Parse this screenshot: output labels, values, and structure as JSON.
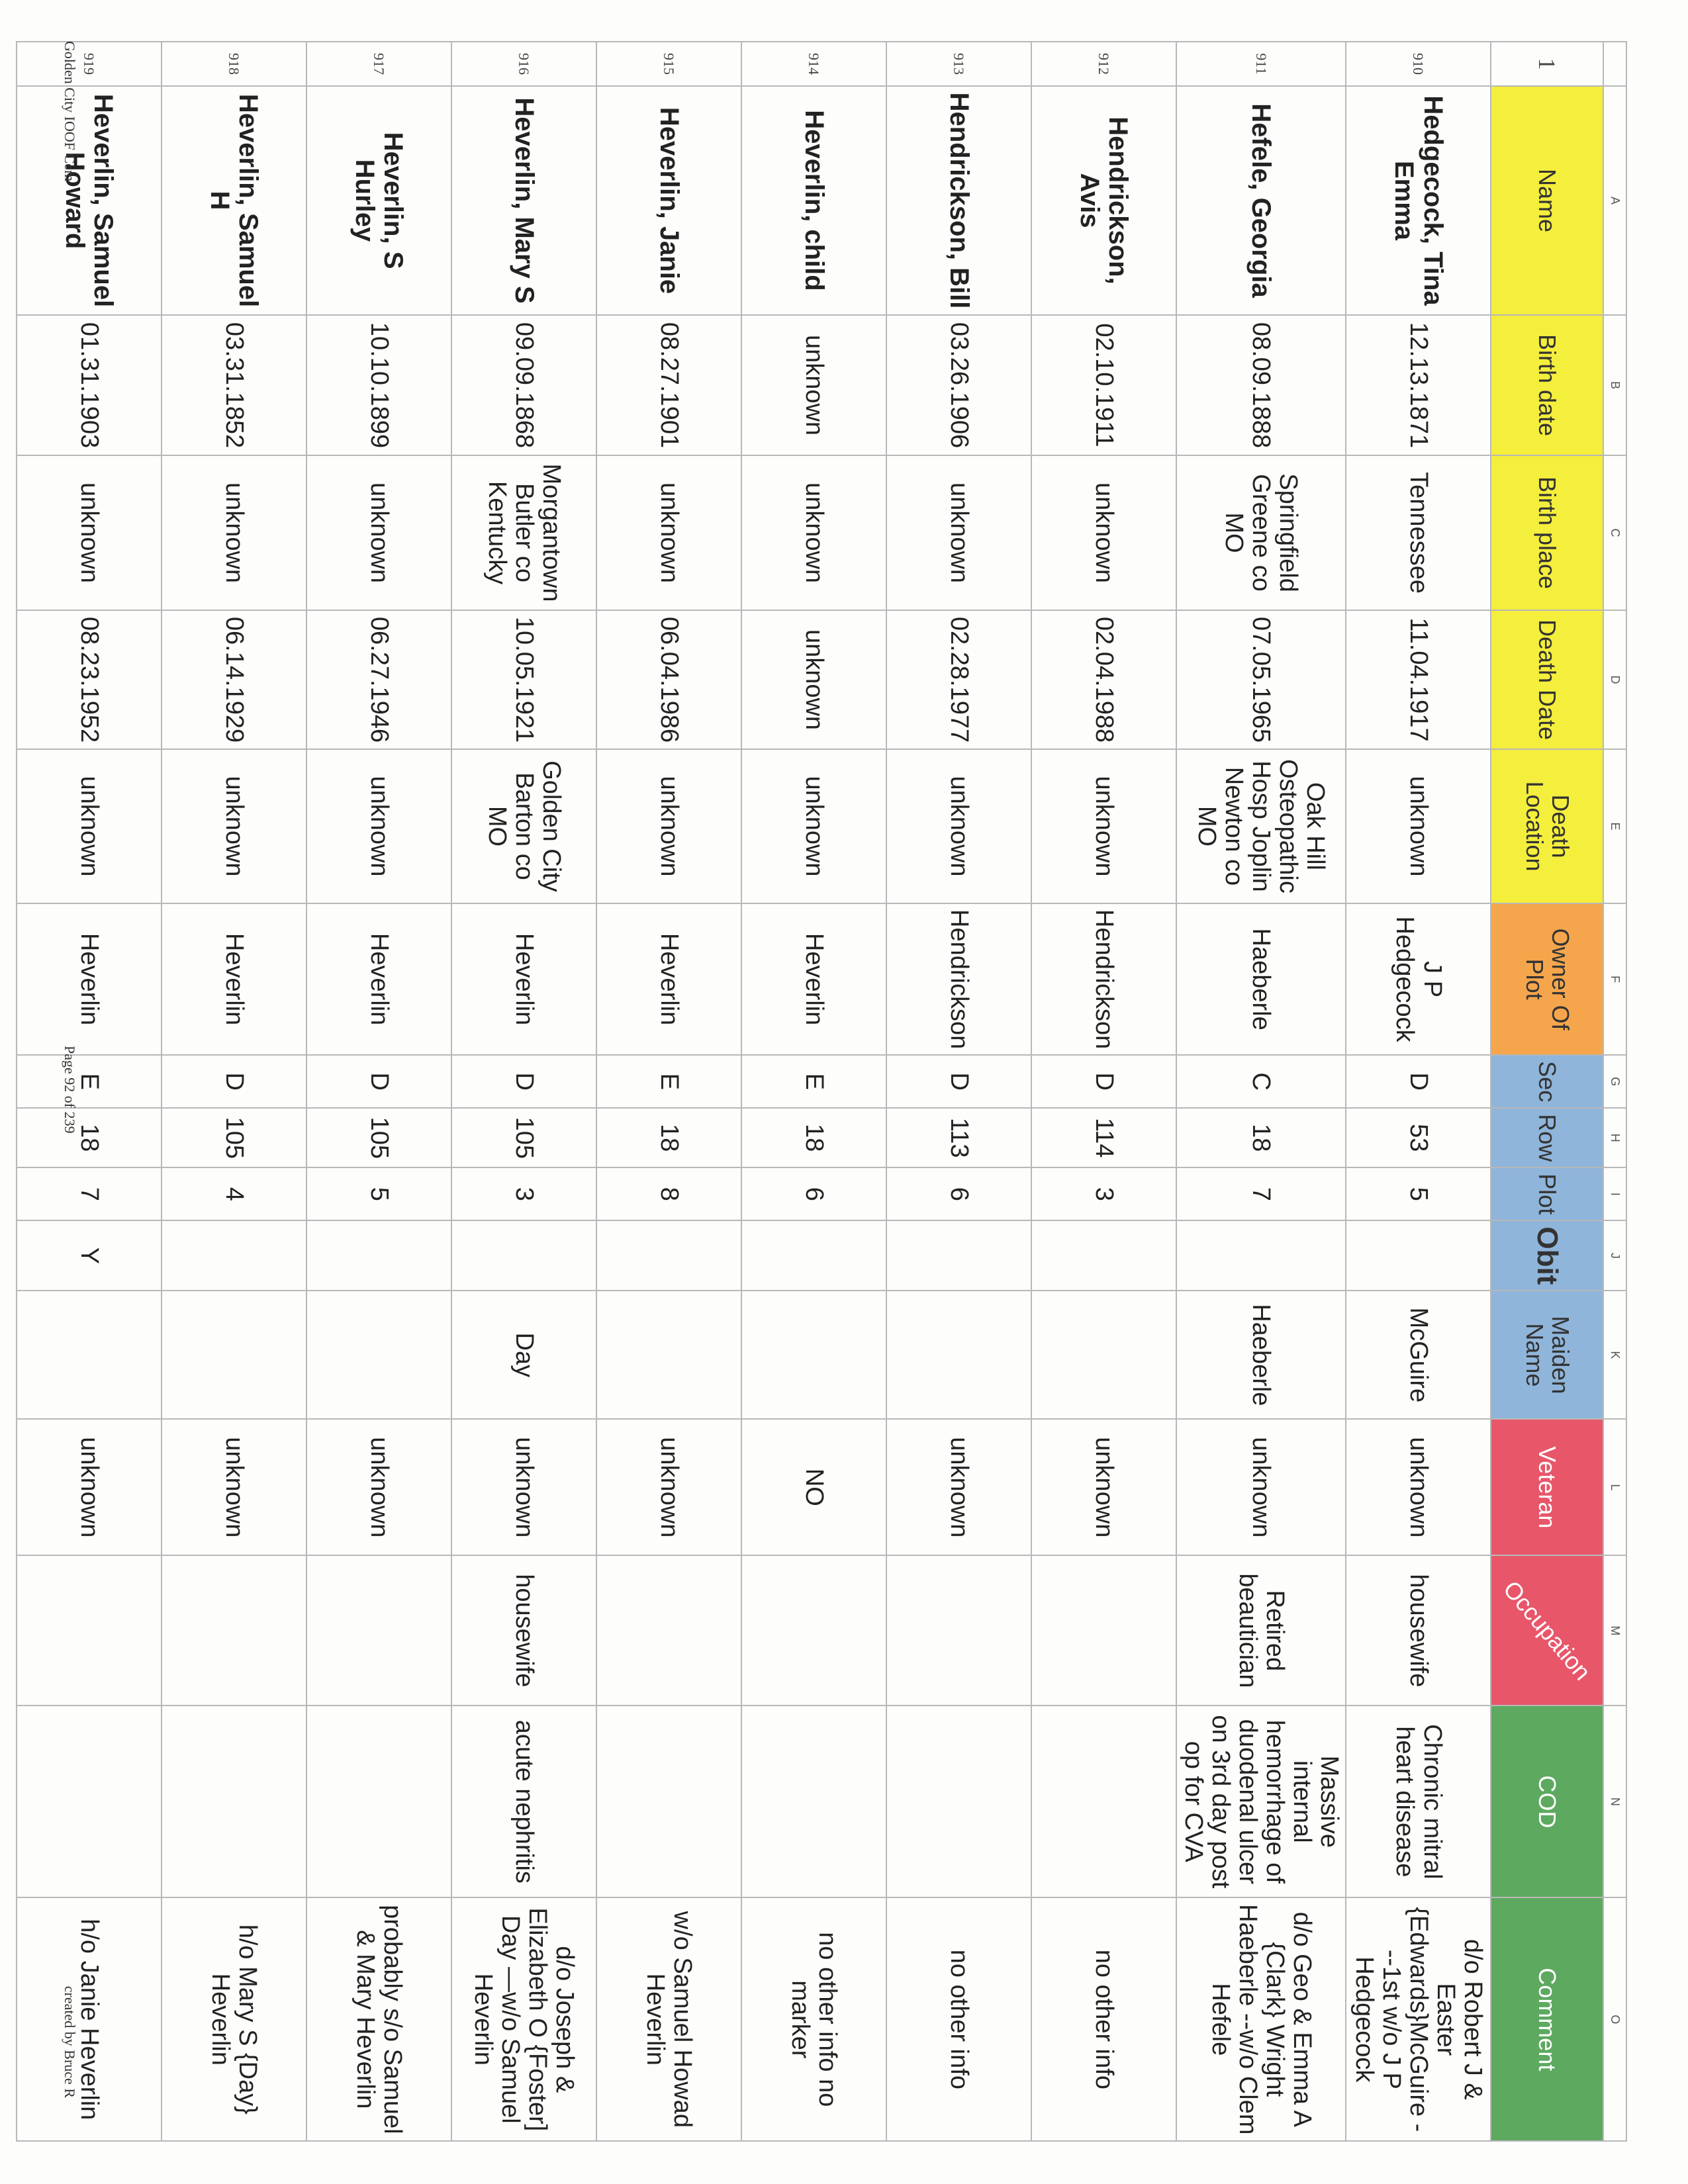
{
  "column_letters": [
    "",
    "A",
    "B",
    "C",
    "D",
    "E",
    "F",
    "G",
    "H",
    "I",
    "J",
    "K",
    "L",
    "M",
    "N",
    "O"
  ],
  "header_row_number": "1",
  "headers": [
    "Name",
    "Birth date",
    "Birth place",
    "Death Date",
    "Death Location",
    "Owner Of Plot",
    "Sec",
    "Row",
    "Plot",
    "Obit",
    "Maiden Name",
    "Veteran",
    "Occupation",
    "COD",
    "Comment"
  ],
  "header_colors": {
    "yellow": "#f4ee3c",
    "orange": "#f5a64c",
    "blue": "#8fb5da",
    "red": "#e8566a",
    "green": "#5ca95f"
  },
  "rows": [
    {
      "n": "910",
      "cells": [
        "Hedgecock, Tina Emma",
        "12.13.1871",
        "Tennessee",
        "11.04.1917",
        "unknown",
        "J P Hedgecock",
        "D",
        "53",
        "5",
        "",
        "McGuire",
        "unknown",
        "housewife",
        "Chronic mitral heart disease",
        "d/o Robert J & Easter {Edwards}McGuire ---1st w/o J P Hedgecock"
      ]
    },
    {
      "n": "911",
      "cells": [
        "Hefele, Georgia",
        "08.09.1888",
        "Springfield Greene co MO",
        "07.05.1965",
        "Oak Hill Osteopathic Hosp Joplin Newton co MO",
        "Haeberle",
        "C",
        "18",
        "7",
        "",
        "Haeberle",
        "unknown",
        "Retired beautician",
        "Massive internal hemorrhage of duodenal ulcer on 3rd day post op for CVA",
        "d/o Geo & Emma A {Clark} Wright Haeberle --w/o Clem Hefele"
      ]
    },
    {
      "n": "912",
      "cells": [
        "Hendrickson, Avis",
        "02.10.1911",
        "unknown",
        "02.04.1988",
        "unknown",
        "Hendrickson",
        "D",
        "114",
        "3",
        "",
        "",
        "unknown",
        "",
        "",
        "no other info"
      ]
    },
    {
      "n": "913",
      "cells": [
        "Hendrickson, Bill",
        "03.26.1906",
        "unknown",
        "02.28.1977",
        "unknown",
        "Hendrickson",
        "D",
        "113",
        "6",
        "",
        "",
        "unknown",
        "",
        "",
        "no other info"
      ]
    },
    {
      "n": "914",
      "cells": [
        "Heverlin, child",
        "unknown",
        "unknown",
        "unknown",
        "unknown",
        "Heverlin",
        "E",
        "18",
        "6",
        "",
        "",
        "NO",
        "",
        "",
        "no other info no marker"
      ]
    },
    {
      "n": "915",
      "cells": [
        "Heverlin, Janie",
        "08.27.1901",
        "unknown",
        "06.04.1986",
        "unknown",
        "Heverlin",
        "E",
        "18",
        "8",
        "",
        "",
        "unknown",
        "",
        "",
        "w/o Samuel Howad Heverlin"
      ]
    },
    {
      "n": "916",
      "cells": [
        "Heverlin, Mary S",
        "09.09.1868",
        "Morgantown Butler co Kentucky",
        "10.05.1921",
        "Golden City Barton co MO",
        "Heverlin",
        "D",
        "105",
        "3",
        "",
        "Day",
        "unknown",
        "housewife",
        "acute nephritis",
        "d/o Joseph & Elizabeth O {Foster] Day —w/o Samuel Heverlin"
      ]
    },
    {
      "n": "917",
      "cells": [
        "Heverlin, S Hurley",
        "10.10.1899",
        "unknown",
        "06.27.1946",
        "unknown",
        "Heverlin",
        "D",
        "105",
        "5",
        "",
        "",
        "unknown",
        "",
        "",
        "probably s/o Samuel & Mary Heverlin"
      ]
    },
    {
      "n": "918",
      "cells": [
        "Heverlin, Samuel H",
        "03.31.1852",
        "unknown",
        "06.14.1929",
        "unknown",
        "Heverlin",
        "D",
        "105",
        "4",
        "",
        "",
        "unknown",
        "",
        "",
        "h/o Mary S {Day} Heverlin"
      ]
    },
    {
      "n": "919",
      "cells": [
        "Heverlin, Samuel Howard",
        "01.31.1903",
        "unknown",
        "08.23.1952",
        "unknown",
        "Heverlin",
        "E",
        "18",
        "7",
        "Y",
        "",
        "unknown",
        "",
        "",
        "h/o Janie Heverlin"
      ]
    }
  ],
  "footer": {
    "left": "Golden City IOOF Cem",
    "center": "Page 92 of 239",
    "right": "created by Bruce R"
  }
}
